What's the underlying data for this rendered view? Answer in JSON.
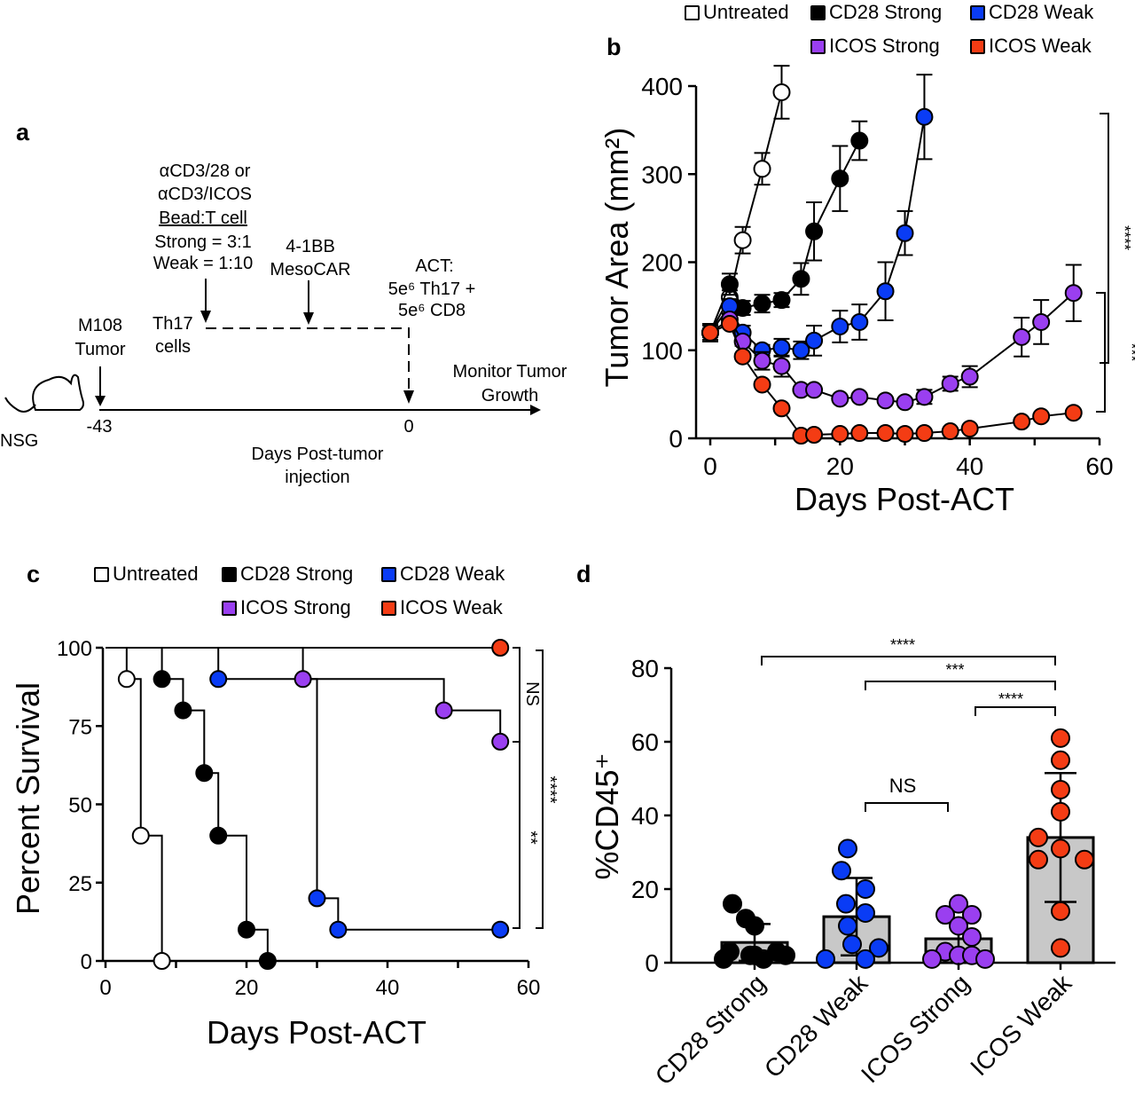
{
  "panel_labels": {
    "a": "a",
    "b": "b",
    "c": "c",
    "d": "d"
  },
  "colors": {
    "untreated": "#ffffff",
    "cd28_strong": "#000000",
    "cd28_weak": "#0a3cf5",
    "icos_strong": "#9a3ff0",
    "icos_weak": "#f43c14"
  },
  "legend": {
    "untreated": "Untreated",
    "cd28_strong": "CD28 Strong",
    "cd28_weak": "CD28 Weak",
    "icos_strong": "ICOS Strong",
    "icos_weak": "ICOS Weak"
  },
  "schematic": {
    "beads_line1": "αCD3/28 or",
    "beads_line2": "αCD3/ICOS",
    "beads_line3": "Bead:T cell",
    "beads_line4": "Strong = 3:1",
    "beads_line5": "Weak = 1:10",
    "car_line1": "4-1BB",
    "car_line2": "MesoCAR",
    "act_line1": "ACT:",
    "act_line2": "5e⁶ Th17 +",
    "act_line3": "5e⁶ CD8",
    "th17_line1": "Th17",
    "th17_line2": "cells",
    "tumor_line1": "M108",
    "tumor_line2": "Tumor",
    "monitor_line1": "Monitor Tumor",
    "monitor_line2": "Growth",
    "day_start": "-43",
    "day_act": "0",
    "axis_line1": "Days Post-tumor",
    "axis_line2": "injection",
    "mouse_label": "NSG"
  },
  "chart_data": [
    {
      "id": "b",
      "type": "line",
      "xlabel": "Days Post-ACT",
      "ylabel": "Tumor Area (mm²)",
      "xlim": [
        0,
        60
      ],
      "ylim": [
        0,
        400
      ],
      "xticks": [
        "0",
        "20",
        "40",
        "60"
      ],
      "yticks": [
        "0",
        "100",
        "200",
        "300",
        "400"
      ],
      "legend_position": "top",
      "series": [
        {
          "name": "Untreated",
          "key": "untreated",
          "x": [
            0,
            3,
            5,
            8,
            11
          ],
          "y": [
            120,
            160,
            225,
            306,
            393
          ],
          "error": [
            5,
            8,
            15,
            18,
            30
          ]
        },
        {
          "name": "CD28 Strong",
          "key": "cd28_strong",
          "x": [
            0,
            3,
            5,
            8,
            11,
            14,
            16,
            20,
            23
          ],
          "y": [
            120,
            175,
            148,
            153,
            157,
            181,
            235,
            295,
            338
          ],
          "error": [
            10,
            12,
            8,
            10,
            8,
            18,
            33,
            37,
            22
          ]
        },
        {
          "name": "CD28 Weak",
          "key": "cd28_weak",
          "x": [
            0,
            3,
            5,
            8,
            11,
            14,
            16,
            20,
            23,
            27,
            30,
            33
          ],
          "y": [
            120,
            150,
            120,
            100,
            103,
            100,
            111,
            127,
            132,
            167,
            233,
            365
          ],
          "error": [
            8,
            8,
            8,
            6,
            10,
            10,
            17,
            18,
            20,
            33,
            25,
            48
          ]
        },
        {
          "name": "ICOS Strong",
          "key": "icos_strong",
          "x": [
            0,
            3,
            5,
            8,
            11,
            14,
            16,
            20,
            23,
            27,
            30,
            33,
            37,
            40,
            48,
            51,
            56
          ],
          "y": [
            120,
            135,
            110,
            88,
            82,
            55,
            55,
            45,
            47,
            43,
            41,
            47,
            62,
            70,
            115,
            132,
            165
          ],
          "error": [
            5,
            5,
            5,
            10,
            12,
            3,
            3,
            3,
            3,
            3,
            3,
            8,
            8,
            12,
            22,
            25,
            32
          ]
        },
        {
          "name": "ICOS Weak",
          "key": "icos_weak",
          "x": [
            0,
            3,
            5,
            8,
            11,
            14,
            16,
            20,
            23,
            27,
            30,
            33,
            37,
            40,
            48,
            51,
            56
          ],
          "y": [
            120,
            130,
            93,
            61,
            34,
            3,
            4,
            5,
            6,
            6,
            5,
            6,
            8,
            11,
            19,
            25,
            29
          ],
          "error": [
            3,
            3,
            3,
            3,
            3,
            2,
            2,
            2,
            2,
            2,
            2,
            2,
            2,
            2,
            3,
            3,
            3
          ]
        }
      ],
      "significance": [
        {
          "label": "****",
          "between": [
            "Untreated / CD28 groups",
            "ICOS Strong"
          ]
        },
        {
          "label": "***",
          "between": [
            "ICOS Strong",
            "ICOS Weak"
          ]
        }
      ]
    },
    {
      "id": "c",
      "type": "line",
      "subtype": "kaplan-meier",
      "xlabel": "Days Post-ACT",
      "ylabel": "Percent Survival",
      "xlim": [
        0,
        60
      ],
      "ylim": [
        0,
        100
      ],
      "xticks": [
        "0",
        "20",
        "40",
        "60"
      ],
      "yticks": [
        "0",
        "25",
        "50",
        "75",
        "100"
      ],
      "legend_position": "top",
      "series": [
        {
          "name": "Untreated",
          "key": "untreated",
          "x": [
            3,
            5,
            8
          ],
          "y": [
            90,
            40,
            0
          ]
        },
        {
          "name": "CD28 Strong",
          "key": "cd28_strong",
          "x": [
            8,
            11,
            14,
            16,
            20,
            23
          ],
          "y": [
            90,
            80,
            60,
            40,
            10,
            0
          ]
        },
        {
          "name": "CD28 Weak",
          "key": "cd28_weak",
          "x": [
            16,
            30,
            33,
            56
          ],
          "y": [
            90,
            20,
            10,
            10
          ]
        },
        {
          "name": "ICOS Strong",
          "key": "icos_strong",
          "x": [
            28,
            48,
            56
          ],
          "y": [
            90,
            80,
            70
          ]
        },
        {
          "name": "ICOS Weak",
          "key": "icos_weak",
          "x": [
            56
          ],
          "y": [
            100
          ]
        }
      ],
      "significance": [
        {
          "label": "NS",
          "between": [
            "ICOS Weak",
            "ICOS Strong"
          ]
        },
        {
          "label": "**",
          "between": [
            "ICOS Strong",
            "CD28 Weak"
          ]
        },
        {
          "label": "****",
          "between": [
            "ICOS Weak",
            "CD28 Weak"
          ]
        }
      ]
    },
    {
      "id": "d",
      "type": "bar",
      "ylabel": "%CD45⁺",
      "ylim": [
        0,
        80
      ],
      "yticks": [
        "0",
        "20",
        "40",
        "60",
        "80"
      ],
      "categories": [
        "CD28 Strong",
        "CD28 Weak",
        "ICOS Strong",
        "ICOS Weak"
      ],
      "keys": [
        "cd28_strong",
        "cd28_weak",
        "icos_strong",
        "icos_weak"
      ],
      "values": [
        5.5,
        12.5,
        6.5,
        34
      ],
      "sd": [
        5,
        10.5,
        4.5,
        17.5
      ],
      "points": [
        [
          16,
          12,
          10,
          3,
          3,
          2,
          2,
          1,
          1,
          2
        ],
        [
          31,
          25,
          20,
          16,
          13.5,
          10,
          5,
          4,
          1,
          1
        ],
        [
          16,
          13,
          13,
          10,
          7,
          3,
          2,
          2,
          1,
          1
        ],
        [
          61,
          55,
          47,
          41,
          34,
          31,
          28,
          28,
          14,
          4
        ]
      ],
      "significance": [
        {
          "label": "****",
          "between": [
            "CD28 Strong",
            "ICOS Weak"
          ]
        },
        {
          "label": "***",
          "between": [
            "CD28 Weak",
            "ICOS Weak"
          ]
        },
        {
          "label": "****",
          "between": [
            "ICOS Strong",
            "ICOS Weak"
          ]
        },
        {
          "label": "NS",
          "between": [
            "CD28 Weak",
            "ICOS Strong"
          ]
        }
      ]
    }
  ]
}
